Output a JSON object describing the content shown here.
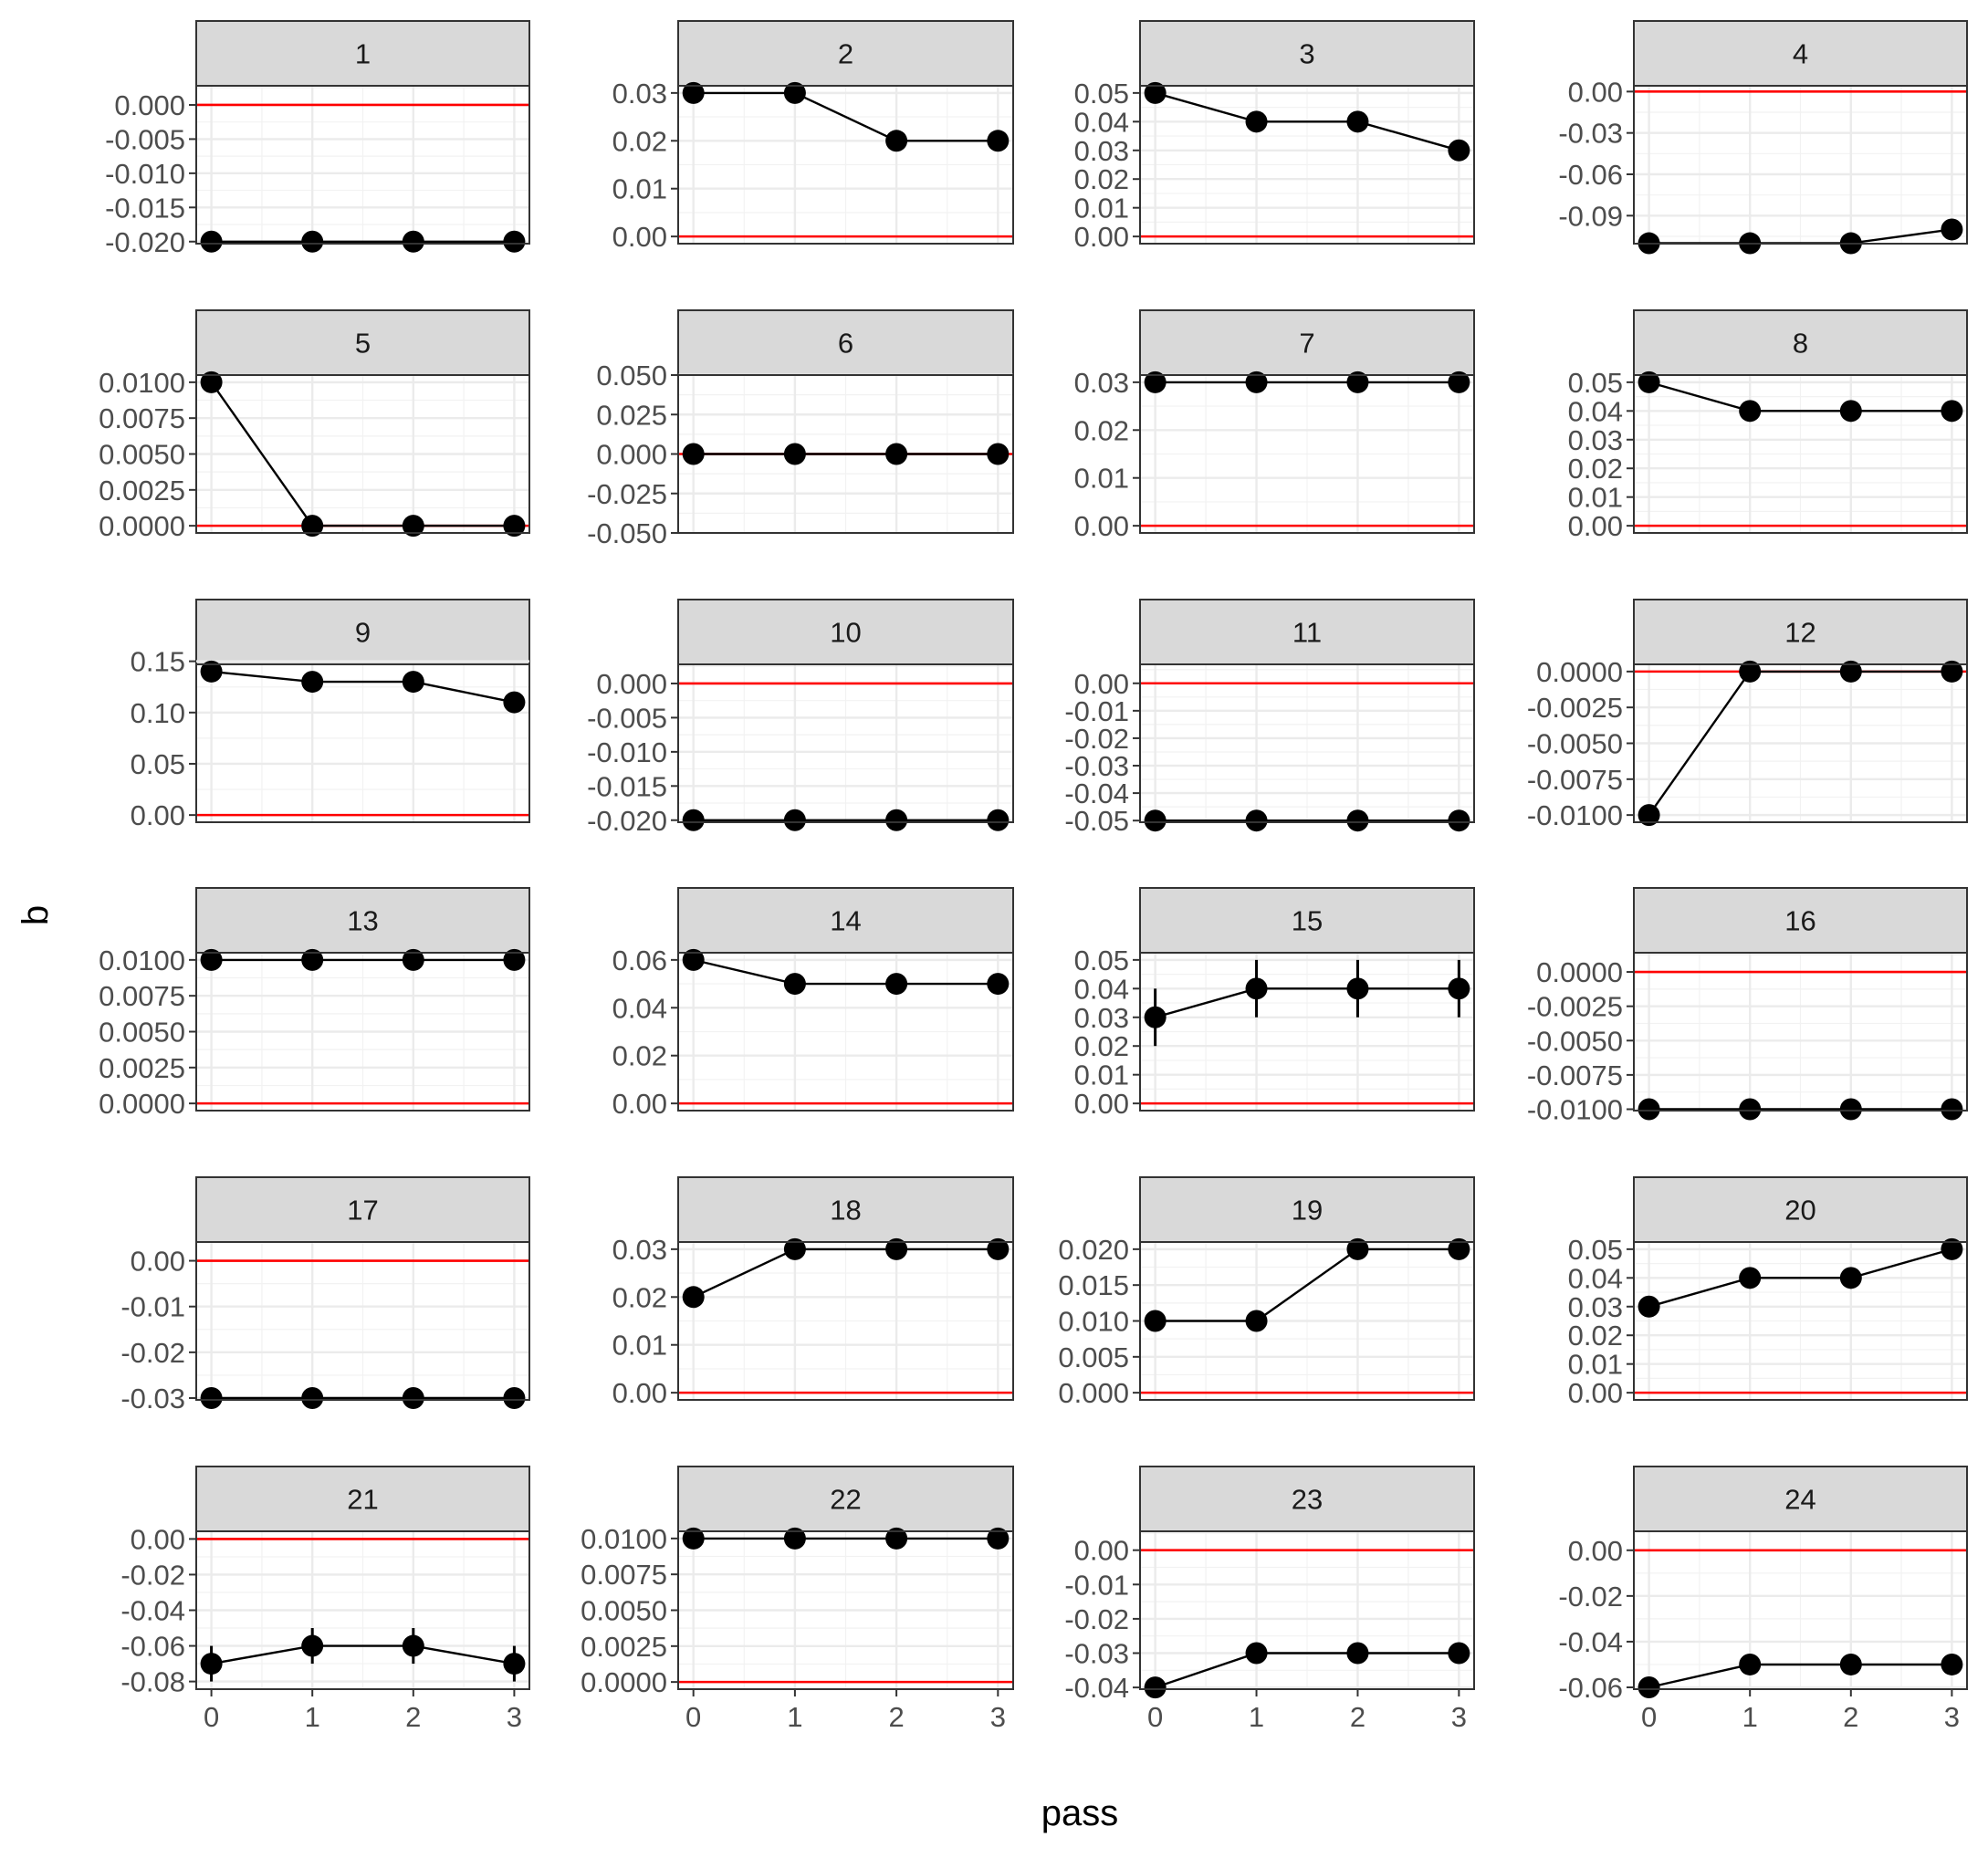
{
  "chart_data": {
    "type": "line",
    "facet_type": "small-multiples",
    "xlabel": "pass",
    "ylabel": "b",
    "x": [
      0,
      1,
      2,
      3
    ],
    "x_ticks": [
      "0",
      "1",
      "2",
      "3"
    ],
    "reference_line": {
      "y": 0,
      "color": "#ff0000"
    },
    "point_color": "#000000",
    "strip_fill": "#d9d9d9",
    "grid": true,
    "panels": [
      {
        "label": "1",
        "values": [
          -0.02,
          -0.02,
          -0.02,
          -0.02
        ],
        "err": [
          0,
          0,
          0,
          0
        ],
        "ylim": [
          -0.0203,
          0.0028
        ],
        "yticks": [
          "0.000",
          "-0.005",
          "-0.010",
          "-0.015",
          "-0.020"
        ]
      },
      {
        "label": "2",
        "values": [
          0.03,
          0.03,
          0.02,
          0.02
        ],
        "err": [
          0,
          0,
          0,
          0
        ],
        "ylim": [
          -0.0015,
          0.0315
        ],
        "yticks": [
          "0.03",
          "0.02",
          "0.01",
          "0.00"
        ]
      },
      {
        "label": "3",
        "values": [
          0.05,
          0.04,
          0.04,
          0.03
        ],
        "err": [
          0,
          0,
          0,
          0
        ],
        "ylim": [
          -0.0025,
          0.0525
        ],
        "yticks": [
          "0.05",
          "0.04",
          "0.03",
          "0.02",
          "0.01",
          "0.00"
        ]
      },
      {
        "label": "4",
        "values": [
          -0.11,
          -0.11,
          -0.11,
          -0.1
        ],
        "err": [
          0,
          0,
          0,
          0
        ],
        "ylim": [
          -0.1103,
          0.0042
        ],
        "yticks": [
          "0.00",
          "-0.03",
          "-0.06",
          "-0.09"
        ]
      },
      {
        "label": "5",
        "values": [
          0.01,
          0,
          0,
          0
        ],
        "err": [
          0,
          0,
          0,
          0
        ],
        "ylim": [
          -0.0005,
          0.0105
        ],
        "yticks": [
          "0.0100",
          "0.0075",
          "0.0050",
          "0.0025",
          "0.0000"
        ]
      },
      {
        "label": "6",
        "values": [
          0,
          0,
          0,
          0
        ],
        "err": [
          0,
          0,
          0,
          0
        ],
        "ylim": [
          -0.05,
          0.05
        ],
        "yticks": [
          "0.050",
          "0.025",
          "0.000",
          "-0.025",
          "-0.050"
        ]
      },
      {
        "label": "7",
        "values": [
          0.03,
          0.03,
          0.03,
          0.03
        ],
        "err": [
          0,
          0,
          0,
          0
        ],
        "ylim": [
          -0.0015,
          0.0315
        ],
        "yticks": [
          "0.03",
          "0.02",
          "0.01",
          "0.00"
        ]
      },
      {
        "label": "8",
        "values": [
          0.05,
          0.04,
          0.04,
          0.04
        ],
        "err": [
          0,
          0,
          0,
          0
        ],
        "ylim": [
          -0.0025,
          0.0525
        ],
        "yticks": [
          "0.05",
          "0.04",
          "0.03",
          "0.02",
          "0.01",
          "0.00"
        ]
      },
      {
        "label": "9",
        "values": [
          0.14,
          0.13,
          0.13,
          0.11
        ],
        "err": [
          0,
          0,
          0,
          0
        ],
        "ylim": [
          -0.007,
          0.147
        ],
        "yticks": [
          "0.15",
          "0.10",
          "0.05",
          "0.00"
        ]
      },
      {
        "label": "10",
        "values": [
          -0.02,
          -0.02,
          -0.02,
          -0.02
        ],
        "err": [
          0,
          0,
          0,
          0
        ],
        "ylim": [
          -0.0203,
          0.0028
        ],
        "yticks": [
          "0.000",
          "-0.005",
          "-0.010",
          "-0.015",
          "-0.020"
        ]
      },
      {
        "label": "11",
        "values": [
          -0.05,
          -0.05,
          -0.05,
          -0.05
        ],
        "err": [
          0,
          0,
          0,
          0
        ],
        "ylim": [
          -0.0506,
          0.0069
        ],
        "yticks": [
          "0.00",
          "-0.01",
          "-0.02",
          "-0.03",
          "-0.04",
          "-0.05"
        ]
      },
      {
        "label": "12",
        "values": [
          -0.01,
          0,
          0,
          0
        ],
        "err": [
          0,
          0,
          0,
          0
        ],
        "ylim": [
          -0.0105,
          0.0005
        ],
        "yticks": [
          "0.0000",
          "-0.0025",
          "-0.0050",
          "-0.0075",
          "-0.0100"
        ]
      },
      {
        "label": "13",
        "values": [
          0.01,
          0.01,
          0.01,
          0.01
        ],
        "err": [
          0,
          0,
          0,
          0
        ],
        "ylim": [
          -0.0005,
          0.0105
        ],
        "yticks": [
          "0.0100",
          "0.0075",
          "0.0050",
          "0.0025",
          "0.0000"
        ]
      },
      {
        "label": "14",
        "values": [
          0.06,
          0.05,
          0.05,
          0.05
        ],
        "err": [
          0,
          0,
          0,
          0
        ],
        "ylim": [
          -0.003,
          0.063
        ],
        "yticks": [
          "0.06",
          "0.04",
          "0.02",
          "0.00"
        ]
      },
      {
        "label": "15",
        "values": [
          0.03,
          0.04,
          0.04,
          0.04
        ],
        "err": [
          0.01,
          0.01,
          0.01,
          0.01
        ],
        "ylim": [
          -0.0025,
          0.0525
        ],
        "yticks": [
          "0.05",
          "0.04",
          "0.03",
          "0.02",
          "0.01",
          "0.00"
        ]
      },
      {
        "label": "16",
        "values": [
          -0.01,
          -0.01,
          -0.01,
          -0.01
        ],
        "err": [
          0,
          0,
          0,
          0
        ],
        "ylim": [
          -0.0101,
          0.0014
        ],
        "yticks": [
          "0.0000",
          "-0.0025",
          "-0.0050",
          "-0.0075",
          "-0.0100"
        ]
      },
      {
        "label": "17",
        "values": [
          -0.03,
          -0.03,
          -0.03,
          -0.03
        ],
        "err": [
          0,
          0,
          0,
          0
        ],
        "ylim": [
          -0.0304,
          0.0041
        ],
        "yticks": [
          "0.00",
          "-0.01",
          "-0.02",
          "-0.03"
        ]
      },
      {
        "label": "18",
        "values": [
          0.02,
          0.03,
          0.03,
          0.03
        ],
        "err": [
          0,
          0,
          0,
          0
        ],
        "ylim": [
          -0.0015,
          0.0315
        ],
        "yticks": [
          "0.03",
          "0.02",
          "0.01",
          "0.00"
        ]
      },
      {
        "label": "19",
        "values": [
          0.01,
          0.01,
          0.02,
          0.02
        ],
        "err": [
          0,
          0,
          0,
          0
        ],
        "ylim": [
          -0.001,
          0.021
        ],
        "yticks": [
          "0.020",
          "0.015",
          "0.010",
          "0.005",
          "0.000"
        ]
      },
      {
        "label": "20",
        "values": [
          0.03,
          0.04,
          0.04,
          0.05
        ],
        "err": [
          0,
          0,
          0,
          0
        ],
        "ylim": [
          -0.0025,
          0.0525
        ],
        "yticks": [
          "0.05",
          "0.04",
          "0.03",
          "0.02",
          "0.01",
          "0.00"
        ]
      },
      {
        "label": "21",
        "values": [
          -0.07,
          -0.06,
          -0.06,
          -0.07
        ],
        "err": [
          0.01,
          0.01,
          0.01,
          0.01
        ],
        "ylim": [
          -0.0843,
          0.0043
        ],
        "yticks": [
          "0.00",
          "-0.02",
          "-0.04",
          "-0.06",
          "-0.08"
        ]
      },
      {
        "label": "22",
        "values": [
          0.01,
          0.01,
          0.01,
          0.01
        ],
        "err": [
          0,
          0,
          0,
          0
        ],
        "ylim": [
          -0.0005,
          0.0105
        ],
        "yticks": [
          "0.0100",
          "0.0075",
          "0.0050",
          "0.0025",
          "0.0000"
        ]
      },
      {
        "label": "23",
        "values": [
          -0.04,
          -0.03,
          -0.03,
          -0.03
        ],
        "err": [
          0,
          0,
          0,
          0
        ],
        "ylim": [
          -0.0405,
          0.0055
        ],
        "yticks": [
          "0.00",
          "-0.01",
          "-0.02",
          "-0.03",
          "-0.04"
        ]
      },
      {
        "label": "24",
        "values": [
          -0.06,
          -0.05,
          -0.05,
          -0.05
        ],
        "err": [
          0,
          0,
          0,
          0
        ],
        "ylim": [
          -0.0608,
          0.0083
        ],
        "yticks": [
          "0.00",
          "-0.02",
          "-0.04",
          "-0.06"
        ]
      }
    ]
  }
}
